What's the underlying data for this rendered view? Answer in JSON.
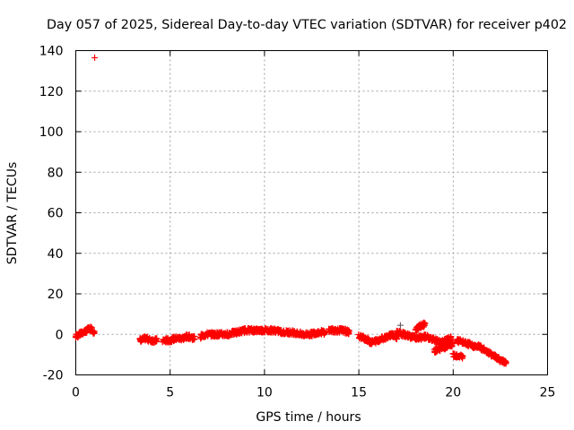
{
  "chart_data": {
    "type": "scatter",
    "title": "Day 057 of 2025, Sidereal Day-to-day VTEC variation (SDTVAR) for receiver p402",
    "xlabel": "GPS time / hours",
    "ylabel": "SDTVAR / TECUs",
    "xlim": [
      0,
      25
    ],
    "ylim": [
      -20,
      140
    ],
    "xticks": [
      0,
      5,
      10,
      15,
      20,
      25
    ],
    "yticks": [
      -20,
      0,
      20,
      40,
      60,
      80,
      100,
      120,
      140
    ],
    "grid": true,
    "marker": "+",
    "color": "#ff0000",
    "outlier": {
      "x": 1.0,
      "y": 136.5
    },
    "dark_point": {
      "x": 17.2,
      "y": 4.5
    },
    "segments": [
      {
        "x0": 0.0,
        "x1": 1.0,
        "y": [
          -1,
          0,
          1,
          2,
          3,
          1
        ]
      },
      {
        "x0": 3.4,
        "x1": 4.3,
        "y": [
          -3,
          -2,
          -3,
          -3
        ]
      },
      {
        "x0": 4.6,
        "x1": 6.3,
        "y": [
          -3,
          -3,
          -2,
          -2,
          -1,
          -2
        ]
      },
      {
        "x0": 6.6,
        "x1": 8.0,
        "y": [
          -1,
          0,
          0,
          0,
          0
        ]
      },
      {
        "x0": 8.0,
        "x1": 11.0,
        "y": [
          0,
          1,
          2,
          2,
          2,
          2,
          1
        ]
      },
      {
        "x0": 11.0,
        "x1": 12.0,
        "y": [
          1,
          1,
          0
        ]
      },
      {
        "x0": 12.0,
        "x1": 13.2,
        "y": [
          0,
          0,
          1,
          1
        ]
      },
      {
        "x0": 13.4,
        "x1": 14.5,
        "y": [
          2,
          2,
          2,
          1
        ]
      },
      {
        "x0": 15.0,
        "x1": 16.0,
        "y": [
          -1,
          -2,
          -4,
          -3
        ]
      },
      {
        "x0": 16.0,
        "x1": 17.0,
        "y": [
          -3,
          -2,
          -1,
          0,
          -2
        ]
      },
      {
        "x0": 17.0,
        "x1": 18.5,
        "y": [
          1,
          0,
          -1,
          -2,
          -1
        ]
      },
      {
        "x0": 18.0,
        "x1": 18.5,
        "y": [
          2,
          4,
          5
        ]
      },
      {
        "x0": 18.5,
        "x1": 19.9,
        "y": [
          -1,
          -2,
          -3,
          -4,
          -3,
          -2
        ]
      },
      {
        "x0": 19.0,
        "x1": 20.0,
        "y": [
          -8,
          -7,
          -6,
          -5
        ]
      },
      {
        "x0": 20.0,
        "x1": 20.5,
        "y": [
          -10,
          -11
        ]
      },
      {
        "x0": 20.2,
        "x1": 21.5,
        "y": [
          -3,
          -4,
          -5,
          -6,
          -6
        ]
      },
      {
        "x0": 21.5,
        "x1": 22.8,
        "y": [
          -7,
          -8,
          -10,
          -11,
          -13,
          -14
        ]
      }
    ]
  }
}
